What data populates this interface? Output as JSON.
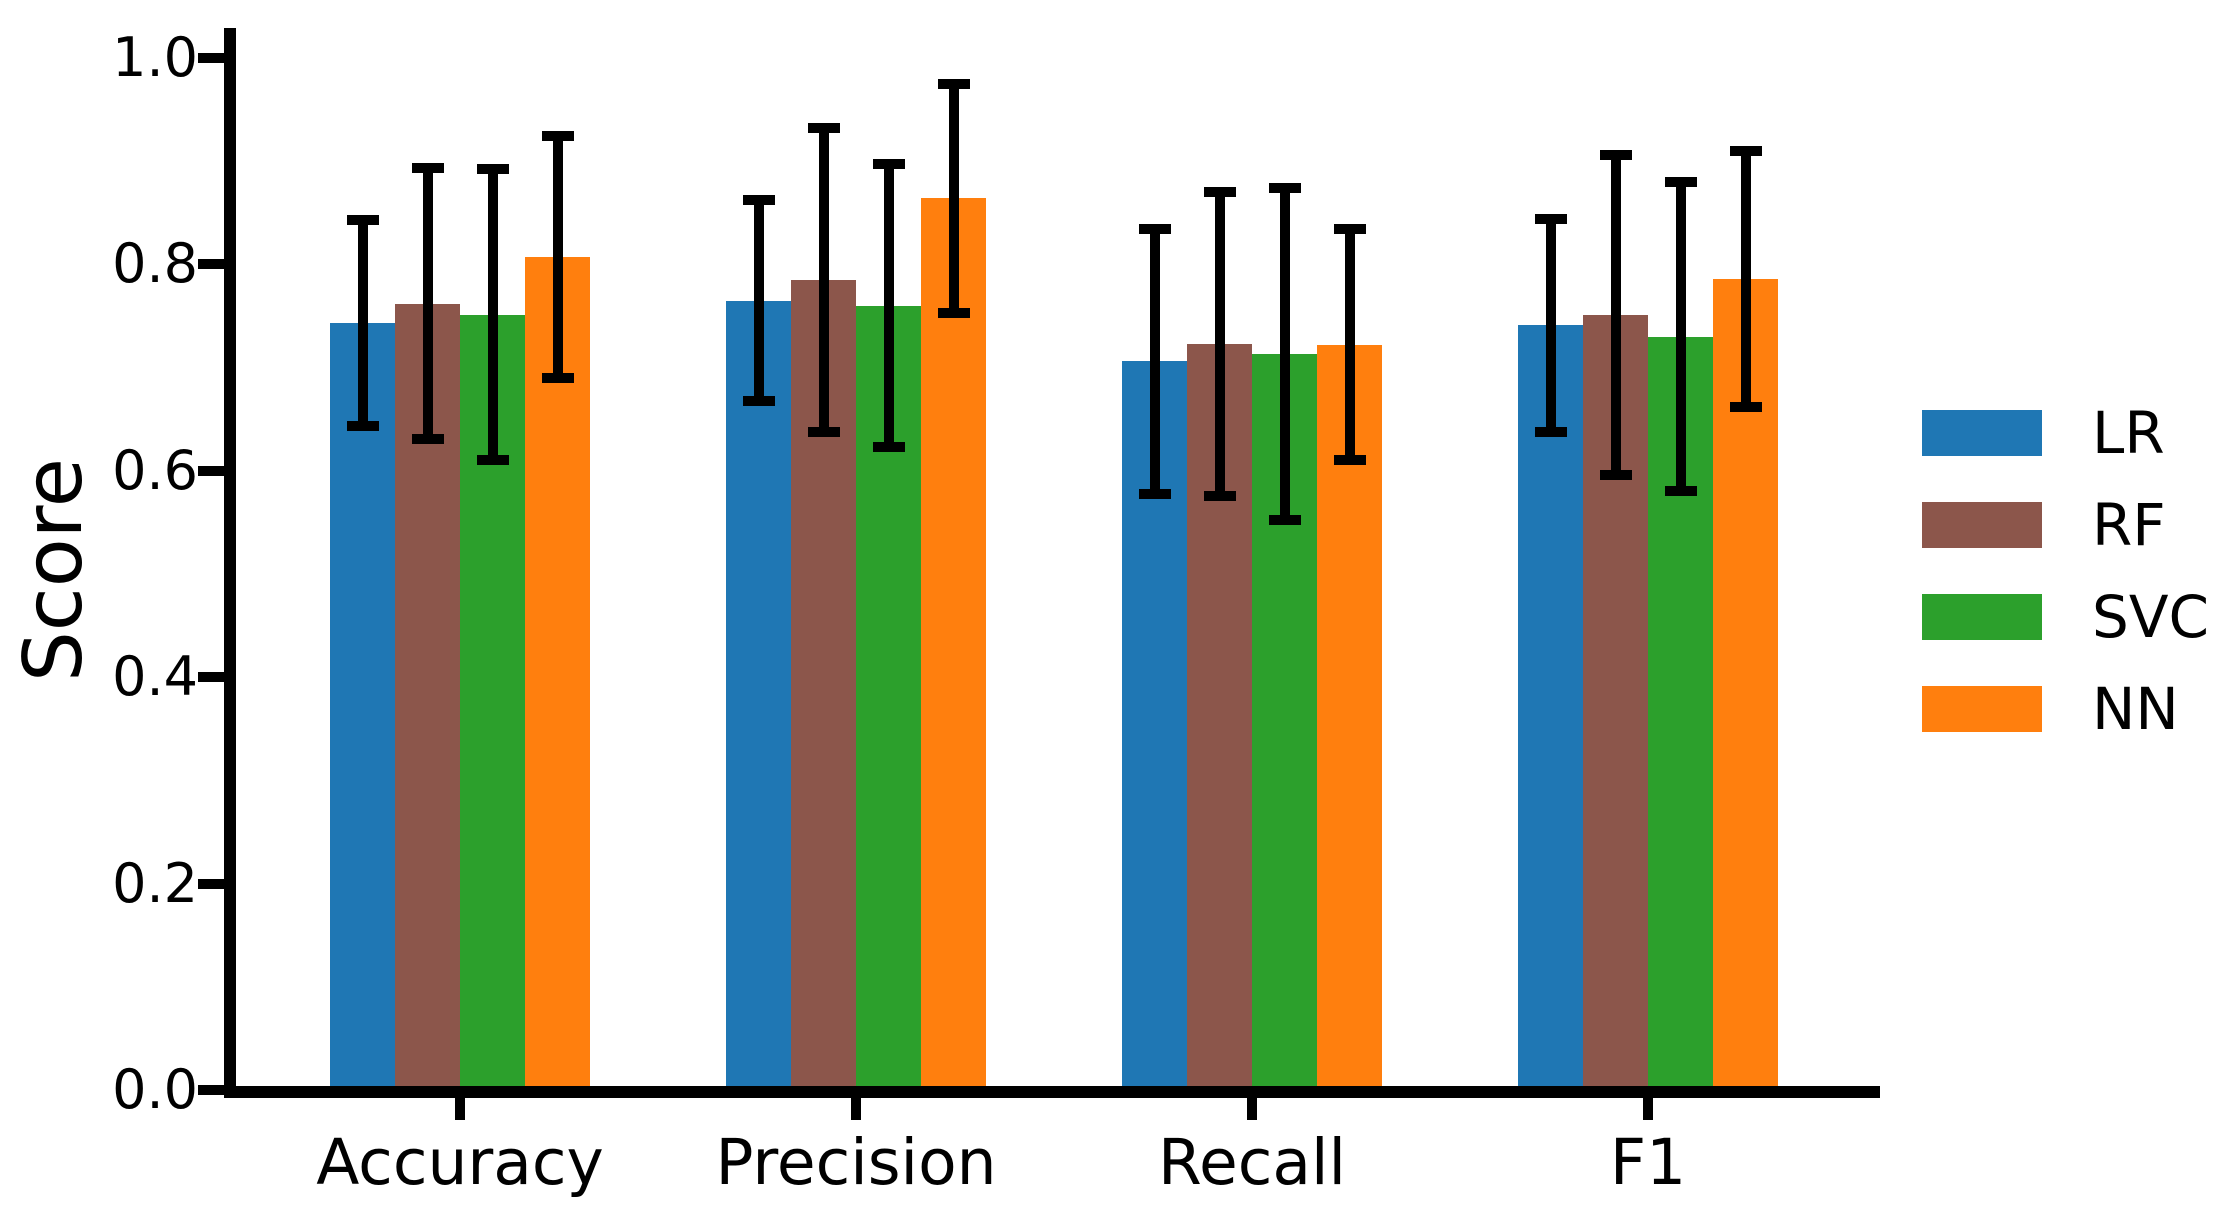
{
  "chart_data": {
    "type": "bar",
    "title": "",
    "xlabel": "",
    "ylabel": "Score",
    "categories": [
      "Accuracy",
      "Precision",
      "Recall",
      "F1"
    ],
    "series": [
      {
        "name": "LR",
        "color": "#1f77b4",
        "values": [
          0.743,
          0.765,
          0.706,
          0.741
        ],
        "errors": [
          0.1,
          0.097,
          0.128,
          0.103
        ]
      },
      {
        "name": "RF",
        "color": "#8c564b",
        "values": [
          0.762,
          0.785,
          0.723,
          0.751
        ],
        "errors": [
          0.131,
          0.147,
          0.147,
          0.155
        ]
      },
      {
        "name": "SVC",
        "color": "#2ca02c",
        "values": [
          0.751,
          0.76,
          0.713,
          0.73
        ],
        "errors": [
          0.141,
          0.137,
          0.161,
          0.15
        ]
      },
      {
        "name": "NN",
        "color": "#ff7f0e",
        "values": [
          0.807,
          0.864,
          0.722,
          0.786
        ],
        "errors": [
          0.117,
          0.111,
          0.112,
          0.124
        ]
      }
    ],
    "ylim": [
      0.0,
      1.0
    ],
    "yticks": [
      0.0,
      0.2,
      0.4,
      0.6,
      0.8,
      1.0
    ],
    "ytick_labels": [
      "0.0",
      "0.2",
      "0.4",
      "0.6",
      "0.8",
      "1.0"
    ],
    "error_bar_color": "#000000",
    "axis_color": "#000000",
    "background_color": "#ffffff",
    "grid": false,
    "legend_position": "right",
    "legend_labels": [
      "LR",
      "RF",
      "SVC",
      "NN"
    ]
  }
}
